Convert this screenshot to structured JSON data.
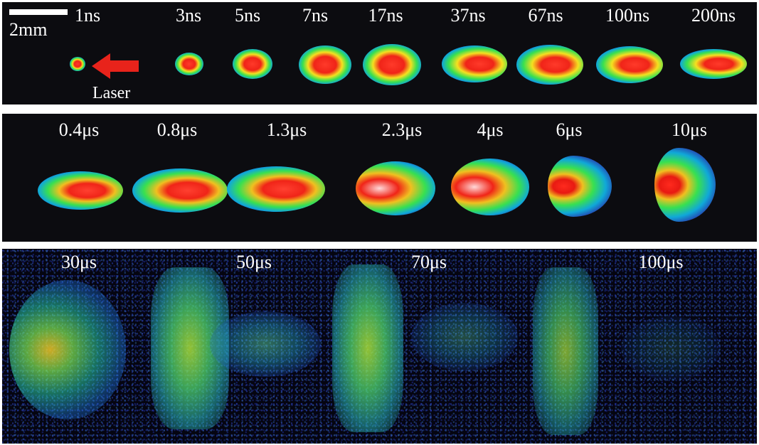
{
  "scale_bar": {
    "label": "2mm"
  },
  "laser": {
    "label": "Laser",
    "arrow_color": "#e8231b"
  },
  "rows": [
    {
      "name": "row-1",
      "labels": [
        "1ns",
        "3ns",
        "5ns",
        "7ns",
        "17ns",
        "37ns",
        "67ns",
        "100ns",
        "200ns"
      ]
    },
    {
      "name": "row-2",
      "labels": [
        "0.4μs",
        "0.8μs",
        "1.3μs",
        "2.3μs",
        "4μs",
        "6μs",
        "10μs"
      ]
    },
    {
      "name": "row-3",
      "labels": [
        "30μs",
        "50μs",
        "70μs",
        "100μs"
      ]
    }
  ],
  "colormap": [
    "#2424a0",
    "#10a8d8",
    "#38e050",
    "#f5e020",
    "#f02418"
  ]
}
